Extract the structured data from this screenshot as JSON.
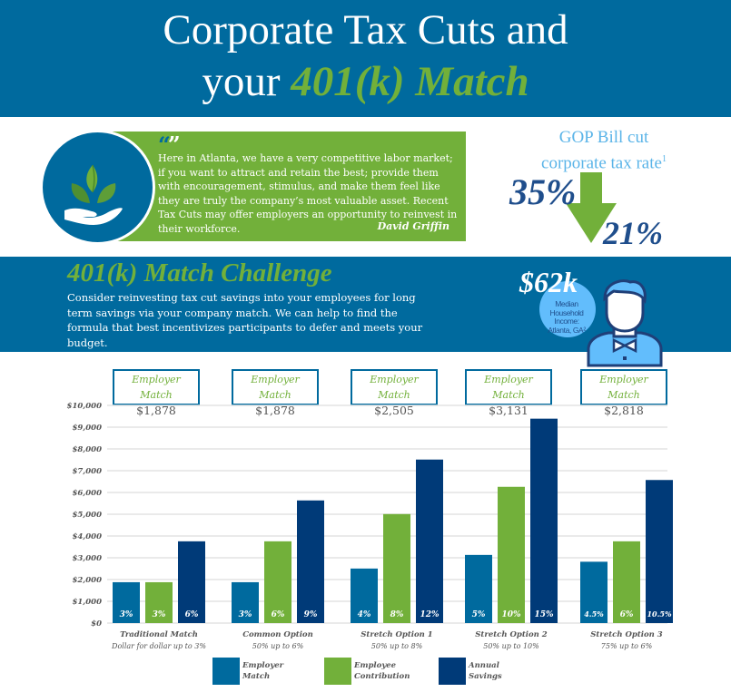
{
  "header": {
    "title_line1": "Corporate Tax Cuts and",
    "title_line2_prefix": "your ",
    "title_line2_accent": "401(k) Match"
  },
  "quote": {
    "icon": "hand-holding-plant-icon",
    "marks": {
      "open": "“",
      "close": "”"
    },
    "text": "Here in Atlanta, we have a very competitive labor market; if you want to attract and retain the best; provide them with encouragement, stimulus, and make them feel like they are truly the company’s most valuable asset. Recent Tax Cuts may offer employers an opportunity to reinvest in their workforce.",
    "author": "David Griffin"
  },
  "tax_cut": {
    "title_line1": "GOP Bill cut",
    "title_line2": "corporate tax rate",
    "footnote": "1",
    "from_rate": "35%",
    "to_rate": "21%",
    "arrow": "down-arrow-icon"
  },
  "challenge": {
    "title": "401(k) Match Challenge",
    "text": "Consider reinvesting tax cut savings into your employees for long term savings via your company match. We can help to find the formula that best incentivizes participants to defer and meets your budget."
  },
  "income": {
    "value": "$62k",
    "label_lines": [
      "Median",
      "Household",
      "Income:",
      "Atlanta, GA²"
    ],
    "icon": "person-icon"
  },
  "colors": {
    "primary_blue": "#006a9e",
    "green": "#72b03a",
    "navy": "#003a78",
    "light_blue": "#62bdfc",
    "text_blue": "#1f4e8c"
  },
  "chart_data": {
    "type": "bar",
    "title": "",
    "xlabel": "",
    "ylabel": "",
    "ylim": [
      0,
      10000
    ],
    "yticks": [
      0,
      1000,
      2000,
      3000,
      4000,
      5000,
      6000,
      7000,
      8000,
      9000,
      10000
    ],
    "ytick_labels": [
      "$0",
      "$1,000",
      "$2,000",
      "$3,000",
      "$4,000",
      "$5,000",
      "$6,000",
      "$7,000",
      "$8,000",
      "$9,000",
      "$10,000"
    ],
    "grid": true,
    "legend_position": "bottom",
    "categories": [
      "Traditional Match",
      "Common Option",
      "Stretch Option 1",
      "Stretch Option 2",
      "Stretch Option 3"
    ],
    "category_subtitles": [
      "Dollar for dollar up to 3%",
      "50% up to 6%",
      "50% up to 8%",
      "50% up to 10%",
      "75% up to 6%"
    ],
    "employer_match_callouts": {
      "label": "Employer Match",
      "values": [
        "$1,878",
        "$1,878",
        "$2,505",
        "$3,131",
        "$2,818"
      ]
    },
    "series": [
      {
        "name": "Employer Match",
        "color": "#006a9e",
        "values": [
          1878,
          1878,
          2505,
          3131,
          2818
        ],
        "bar_labels": [
          "3%",
          "3%",
          "4%",
          "5%",
          "4.5%"
        ]
      },
      {
        "name": "Employee Contribution",
        "color": "#72b03a",
        "values": [
          1878,
          3756,
          5008,
          6260,
          3756
        ],
        "bar_labels": [
          "3%",
          "6%",
          "8%",
          "10%",
          "6%"
        ]
      },
      {
        "name": "Annual Savings",
        "color": "#003a78",
        "values": [
          3756,
          5634,
          7512,
          9390,
          6573
        ],
        "bar_labels": [
          "6%",
          "9%",
          "12%",
          "15%",
          "10.5%"
        ]
      }
    ],
    "legend": [
      {
        "line1": "Employer",
        "line2": "Match"
      },
      {
        "line1": "Employee",
        "line2": "Contribution"
      },
      {
        "line1": "Annual",
        "line2": "Savings"
      }
    ]
  }
}
